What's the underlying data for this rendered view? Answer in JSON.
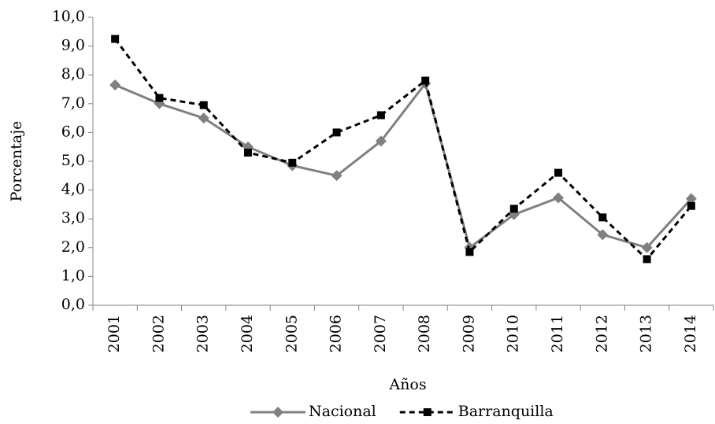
{
  "chart_data": {
    "type": "line",
    "x_label": "Años",
    "y_label": "Porcentaje",
    "categories": [
      "2001",
      "2002",
      "2003",
      "2004",
      "2005",
      "2006",
      "2007",
      "2008",
      "2009",
      "2010",
      "2011",
      "2012",
      "2013",
      "2014"
    ],
    "series": [
      {
        "name": "Nacional",
        "color": "#808080",
        "marker": "diamond",
        "dashed": false,
        "values": [
          7.65,
          7.0,
          6.5,
          5.5,
          4.85,
          4.5,
          5.7,
          7.7,
          2.0,
          3.15,
          3.73,
          2.45,
          2.0,
          3.7
        ]
      },
      {
        "name": "Barranquilla",
        "color": "#000000",
        "marker": "square",
        "dashed": true,
        "values": [
          9.25,
          7.2,
          6.95,
          5.3,
          4.95,
          6.0,
          6.6,
          7.8,
          1.85,
          3.35,
          4.6,
          3.05,
          1.6,
          3.45
        ]
      }
    ],
    "ylim": [
      0,
      10
    ],
    "yticks": [
      {
        "value": 0,
        "label": "0,0"
      },
      {
        "value": 1,
        "label": "1,0"
      },
      {
        "value": 2,
        "label": "2,0"
      },
      {
        "value": 3,
        "label": "3,0"
      },
      {
        "value": 4,
        "label": "4,0"
      },
      {
        "value": 5,
        "label": "5,0"
      },
      {
        "value": 6,
        "label": "6,0"
      },
      {
        "value": 7,
        "label": "7,0"
      },
      {
        "value": 8,
        "label": "8,0"
      },
      {
        "value": 9,
        "label": "9,0"
      },
      {
        "value": 10,
        "label": "10,0"
      }
    ],
    "grid": false,
    "legend": "bottom"
  }
}
